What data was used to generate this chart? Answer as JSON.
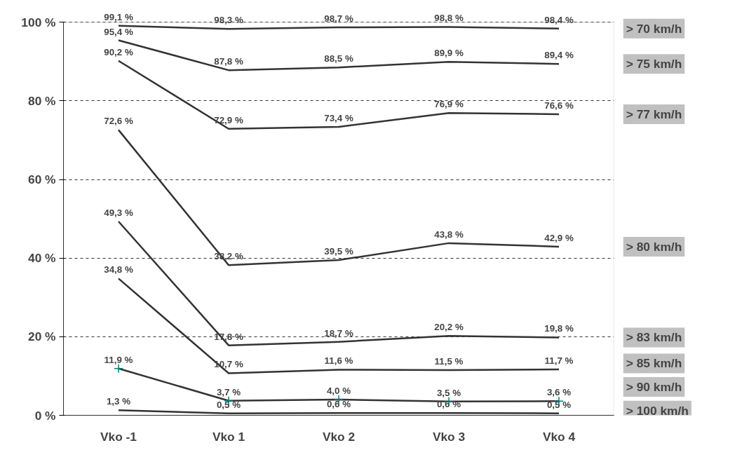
{
  "chart_data": {
    "type": "line",
    "categories": [
      "Vko -1",
      "Vko 1",
      "Vko 2",
      "Vko 3",
      "Vko 4"
    ],
    "ylim": [
      0,
      100
    ],
    "yticks": [
      {
        "value": 0,
        "label": "0 %"
      },
      {
        "value": 20,
        "label": "20 %"
      },
      {
        "value": 40,
        "label": "40 %"
      },
      {
        "value": 60,
        "label": "60 %"
      },
      {
        "value": 80,
        "label": "80 %"
      },
      {
        "value": 100,
        "label": "100 %"
      }
    ],
    "grid": "y",
    "line_style": "solid",
    "series": [
      {
        "name": "> 70 km/h",
        "color": "#333333",
        "values": [
          99.1,
          98.3,
          98.7,
          98.8,
          98.4
        ],
        "value_labels": [
          "99,1 %",
          "98,3 %",
          "98,7 %",
          "98,8 %",
          "98,4 %"
        ]
      },
      {
        "name": "> 75 km/h",
        "color": "#333333",
        "values": [
          95.4,
          87.8,
          88.5,
          89.9,
          89.4
        ],
        "value_labels": [
          "95,4 %",
          "87,8 %",
          "88,5 %",
          "89,9 %",
          "89,4 %"
        ]
      },
      {
        "name": "> 77 km/h",
        "color": "#333333",
        "values": [
          90.2,
          72.9,
          73.4,
          76.9,
          76.6
        ],
        "value_labels": [
          "90,2 %",
          "72,9 %",
          "73,4 %",
          "76,9 %",
          "76,6 %"
        ]
      },
      {
        "name": "> 80 km/h",
        "color": "#333333",
        "values": [
          72.6,
          38.2,
          39.5,
          43.8,
          42.9
        ],
        "value_labels": [
          "72,6 %",
          "38,2 %",
          "39,5 %",
          "43,8 %",
          "42,9 %"
        ]
      },
      {
        "name": "> 83 km/h",
        "color": "#333333",
        "values": [
          49.3,
          17.8,
          18.7,
          20.2,
          19.8
        ],
        "value_labels": [
          "49,3 %",
          "17,8 %",
          "18,7 %",
          "20,2 %",
          "19,8 %"
        ]
      },
      {
        "name": "> 85 km/h",
        "color": "#333333",
        "values": [
          34.8,
          10.7,
          11.6,
          11.5,
          11.7
        ],
        "value_labels": [
          "34,8 %",
          "10,7 %",
          "11,6 %",
          "11,5 %",
          "11,7 %"
        ]
      },
      {
        "name": "> 90 km/h",
        "color": "#333333",
        "marker": "cross",
        "values": [
          11.9,
          3.7,
          4.0,
          3.5,
          3.6
        ],
        "value_labels": [
          "11,9 %",
          "3,7 %",
          "4,0 %",
          "3,5 %",
          "3,6 %"
        ]
      },
      {
        "name": "> 100 km/h",
        "color": "#333333",
        "values": [
          1.3,
          0.5,
          0.6,
          0.6,
          0.5
        ],
        "value_labels": [
          "1,3 %",
          "0,5 %",
          "0,6 %",
          "0,6 %",
          "0,5 %"
        ]
      }
    ]
  }
}
